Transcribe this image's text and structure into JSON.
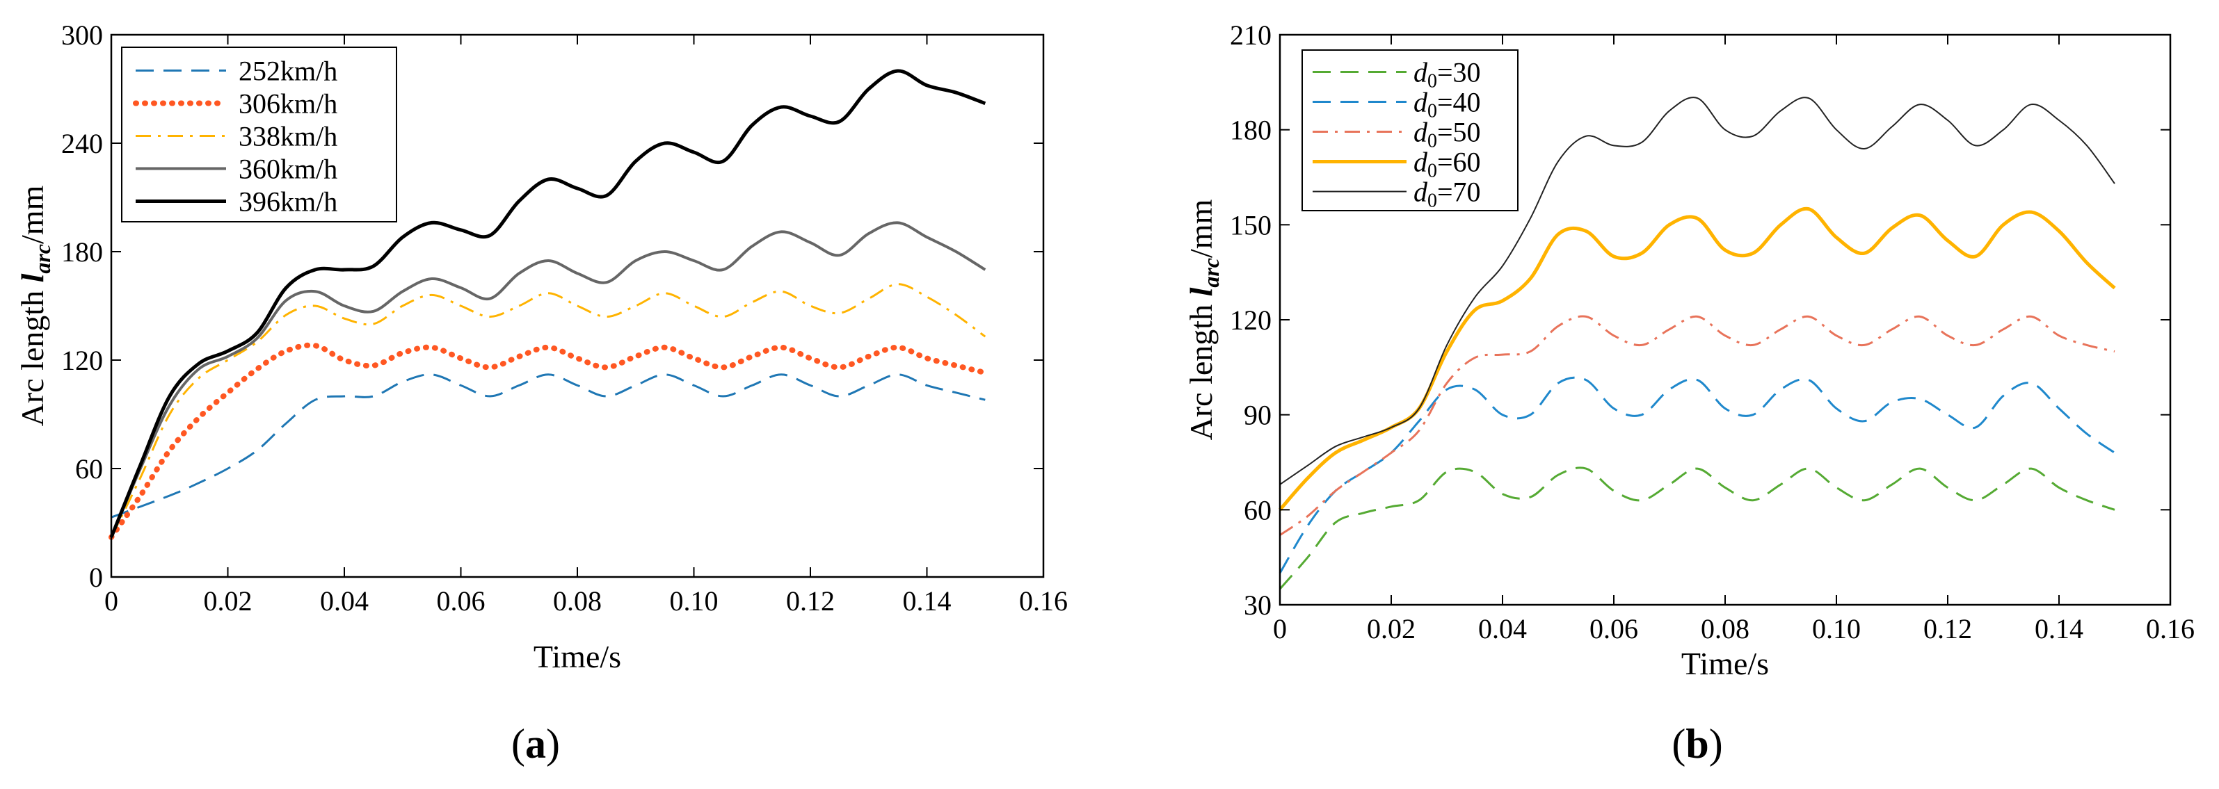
{
  "chart_data": [
    {
      "id": "a",
      "type": "line",
      "caption": "a",
      "xlabel": "Time/s",
      "ylabel_prefix": "Arc length ",
      "ylabel_var": "l",
      "ylabel_sub": "arc",
      "ylabel_suffix": "/mm",
      "xlim": [
        0,
        0.16
      ],
      "ylim": [
        0,
        300
      ],
      "xticks": [
        0,
        0.02,
        0.04,
        0.06,
        0.08,
        0.1,
        0.12,
        0.14,
        0.16
      ],
      "xtick_labels": [
        "0",
        "0.02",
        "0.04",
        "0.06",
        "0.08",
        "0.10",
        "0.12",
        "0.14",
        "0.16"
      ],
      "yticks": [
        0,
        60,
        120,
        180,
        240,
        300
      ],
      "ytick_labels": [
        "0",
        "60",
        "120",
        "180",
        "240",
        "300"
      ],
      "legend_position": "top-left",
      "series": [
        {
          "name": "252km/h",
          "label": "252km/h",
          "color": "#1f77b4",
          "dash": "dash",
          "width": 3,
          "x": [
            0,
            0.01,
            0.015,
            0.02,
            0.025,
            0.03,
            0.035,
            0.04,
            0.045,
            0.05,
            0.055,
            0.06,
            0.065,
            0.07,
            0.075,
            0.08,
            0.085,
            0.09,
            0.095,
            0.1,
            0.105,
            0.11,
            0.115,
            0.12,
            0.125,
            0.13,
            0.135,
            0.14,
            0.145,
            0.15
          ],
          "y": [
            33,
            45,
            52,
            60,
            70,
            85,
            98,
            100,
            100,
            108,
            112,
            106,
            100,
            106,
            112,
            106,
            100,
            106,
            112,
            106,
            100,
            106,
            112,
            106,
            100,
            106,
            112,
            106,
            102,
            98
          ]
        },
        {
          "name": "306km/h",
          "label": "306km/h",
          "color": "#ff5722",
          "dash": "dot",
          "width": 8,
          "x": [
            0,
            0.005,
            0.01,
            0.015,
            0.02,
            0.025,
            0.03,
            0.035,
            0.04,
            0.045,
            0.05,
            0.055,
            0.06,
            0.065,
            0.07,
            0.075,
            0.08,
            0.085,
            0.09,
            0.095,
            0.1,
            0.105,
            0.11,
            0.115,
            0.12,
            0.125,
            0.13,
            0.135,
            0.14,
            0.145,
            0.15
          ],
          "y": [
            22,
            45,
            70,
            88,
            102,
            115,
            125,
            128,
            120,
            117,
            124,
            127,
            121,
            116,
            122,
            127,
            121,
            116,
            122,
            127,
            121,
            116,
            122,
            127,
            121,
            116,
            122,
            127,
            121,
            117,
            113
          ]
        },
        {
          "name": "338km/h",
          "label": "338km/h",
          "color": "#ffb300",
          "dash": "dashdot",
          "width": 3,
          "x": [
            0,
            0.005,
            0.01,
            0.015,
            0.02,
            0.025,
            0.03,
            0.035,
            0.04,
            0.045,
            0.05,
            0.055,
            0.06,
            0.065,
            0.07,
            0.075,
            0.08,
            0.085,
            0.09,
            0.095,
            0.1,
            0.105,
            0.11,
            0.115,
            0.12,
            0.125,
            0.13,
            0.135,
            0.14,
            0.145,
            0.15
          ],
          "y": [
            22,
            55,
            90,
            110,
            120,
            130,
            145,
            150,
            143,
            140,
            150,
            156,
            150,
            144,
            150,
            157,
            150,
            144,
            150,
            157,
            150,
            144,
            152,
            158,
            150,
            146,
            154,
            162,
            155,
            145,
            133
          ]
        },
        {
          "name": "360km/h",
          "label": "360km/h",
          "color": "#666666",
          "dash": "solid",
          "width": 4,
          "x": [
            0,
            0.005,
            0.01,
            0.015,
            0.02,
            0.025,
            0.03,
            0.035,
            0.04,
            0.045,
            0.05,
            0.055,
            0.06,
            0.065,
            0.07,
            0.075,
            0.08,
            0.085,
            0.09,
            0.095,
            0.1,
            0.105,
            0.11,
            0.115,
            0.12,
            0.125,
            0.13,
            0.135,
            0.14,
            0.145,
            0.15
          ],
          "y": [
            22,
            60,
            95,
            115,
            122,
            132,
            153,
            158,
            150,
            147,
            158,
            165,
            160,
            154,
            168,
            175,
            168,
            163,
            175,
            180,
            175,
            170,
            183,
            191,
            185,
            178,
            190,
            196,
            188,
            180,
            170
          ]
        },
        {
          "name": "396km/h",
          "label": "396km/h",
          "color": "#000000",
          "dash": "solid",
          "width": 5,
          "x": [
            0,
            0.005,
            0.01,
            0.015,
            0.02,
            0.025,
            0.03,
            0.035,
            0.04,
            0.045,
            0.05,
            0.055,
            0.06,
            0.065,
            0.07,
            0.075,
            0.08,
            0.085,
            0.09,
            0.095,
            0.1,
            0.105,
            0.11,
            0.115,
            0.12,
            0.125,
            0.13,
            0.135,
            0.14,
            0.145,
            0.15
          ],
          "y": [
            22,
            62,
            100,
            118,
            125,
            135,
            160,
            170,
            170,
            172,
            188,
            196,
            192,
            189,
            208,
            220,
            215,
            211,
            230,
            240,
            235,
            230,
            250,
            260,
            255,
            252,
            270,
            280,
            272,
            268,
            262
          ]
        }
      ]
    },
    {
      "id": "b",
      "type": "line",
      "caption": "b",
      "xlabel": "Time/s",
      "ylabel_prefix": "Arc length ",
      "ylabel_var": "l",
      "ylabel_sub": "arc",
      "ylabel_suffix": "/mm",
      "xlim": [
        0,
        0.16
      ],
      "ylim": [
        30,
        210
      ],
      "xticks": [
        0,
        0.02,
        0.04,
        0.06,
        0.08,
        0.1,
        0.12,
        0.14,
        0.16
      ],
      "xtick_labels": [
        "0",
        "0.02",
        "0.04",
        "0.06",
        "0.08",
        "0.10",
        "0.12",
        "0.14",
        "0.16"
      ],
      "yticks": [
        30,
        60,
        90,
        120,
        150,
        180,
        210
      ],
      "ytick_labels": [
        "30",
        "60",
        "90",
        "120",
        "150",
        "180",
        "210"
      ],
      "legend_position": "top-left",
      "series": [
        {
          "name": "d0=30",
          "label_var": "d",
          "label_sub": "0",
          "label_rest": "=30",
          "color": "#55aa33",
          "dash": "dash",
          "width": 3,
          "x": [
            0,
            0.005,
            0.01,
            0.015,
            0.02,
            0.025,
            0.03,
            0.035,
            0.04,
            0.045,
            0.05,
            0.055,
            0.06,
            0.065,
            0.07,
            0.075,
            0.08,
            0.085,
            0.09,
            0.095,
            0.1,
            0.105,
            0.11,
            0.115,
            0.12,
            0.125,
            0.13,
            0.135,
            0.14,
            0.145,
            0.15
          ],
          "y": [
            35,
            45,
            56,
            59,
            61,
            63,
            72,
            72,
            65,
            64,
            71,
            73,
            66,
            63,
            68,
            73,
            67,
            63,
            68,
            73,
            67,
            63,
            68,
            73,
            67,
            63,
            68,
            73,
            67,
            63,
            60
          ]
        },
        {
          "name": "d0=40",
          "label_var": "d",
          "label_sub": "0",
          "label_rest": "=40",
          "color": "#1f88cc",
          "dash": "dash",
          "width": 3,
          "x": [
            0,
            0.005,
            0.01,
            0.015,
            0.02,
            0.025,
            0.03,
            0.035,
            0.04,
            0.045,
            0.05,
            0.055,
            0.06,
            0.065,
            0.07,
            0.075,
            0.08,
            0.085,
            0.09,
            0.095,
            0.1,
            0.105,
            0.11,
            0.115,
            0.12,
            0.125,
            0.13,
            0.135,
            0.14,
            0.145,
            0.15
          ],
          "y": [
            40,
            55,
            66,
            72,
            78,
            88,
            98,
            98,
            90,
            90,
            100,
            101,
            92,
            90,
            98,
            101,
            92,
            90,
            98,
            101,
            92,
            88,
            94,
            95,
            90,
            86,
            96,
            100,
            92,
            84,
            78
          ]
        },
        {
          "name": "d0=50",
          "label_var": "d",
          "label_sub": "0",
          "label_rest": "=50",
          "color": "#e8735a",
          "dash": "dashdot",
          "width": 3,
          "x": [
            0,
            0.005,
            0.01,
            0.015,
            0.02,
            0.025,
            0.03,
            0.035,
            0.04,
            0.045,
            0.05,
            0.055,
            0.06,
            0.065,
            0.07,
            0.075,
            0.08,
            0.085,
            0.09,
            0.095,
            0.1,
            0.105,
            0.11,
            0.115,
            0.12,
            0.125,
            0.13,
            0.135,
            0.14,
            0.145,
            0.15
          ],
          "y": [
            52,
            58,
            66,
            72,
            78,
            85,
            100,
            108,
            109,
            110,
            118,
            121,
            115,
            112,
            117,
            121,
            115,
            112,
            117,
            121,
            115,
            112,
            117,
            121,
            115,
            112,
            117,
            121,
            115,
            112,
            110
          ]
        },
        {
          "name": "d0=60",
          "label_var": "d",
          "label_sub": "0",
          "label_rest": "=60",
          "color": "#ffb300",
          "dash": "solid",
          "width": 5,
          "x": [
            0,
            0.005,
            0.01,
            0.015,
            0.02,
            0.025,
            0.03,
            0.035,
            0.04,
            0.045,
            0.05,
            0.055,
            0.06,
            0.065,
            0.07,
            0.075,
            0.08,
            0.085,
            0.09,
            0.095,
            0.1,
            0.105,
            0.11,
            0.115,
            0.12,
            0.125,
            0.13,
            0.135,
            0.14,
            0.145,
            0.15
          ],
          "y": [
            60,
            70,
            78,
            82,
            86,
            92,
            110,
            123,
            126,
            133,
            147,
            148,
            140,
            141,
            150,
            152,
            142,
            141,
            150,
            155,
            146,
            141,
            149,
            153,
            145,
            140,
            150,
            154,
            148,
            138,
            130
          ]
        },
        {
          "name": "d0=70",
          "label_var": "d",
          "label_sub": "0",
          "label_rest": "=70",
          "color": "#222222",
          "dash": "solid",
          "width": 2,
          "x": [
            0,
            0.005,
            0.01,
            0.015,
            0.02,
            0.025,
            0.03,
            0.035,
            0.04,
            0.045,
            0.05,
            0.055,
            0.06,
            0.065,
            0.07,
            0.075,
            0.08,
            0.085,
            0.09,
            0.095,
            0.1,
            0.105,
            0.11,
            0.115,
            0.12,
            0.125,
            0.13,
            0.135,
            0.14,
            0.145,
            0.15
          ],
          "y": [
            68,
            74,
            80,
            83,
            86,
            92,
            112,
            127,
            137,
            152,
            170,
            178,
            175,
            176,
            186,
            190,
            180,
            178,
            186,
            190,
            180,
            174,
            181,
            188,
            183,
            175,
            180,
            188,
            183,
            175,
            163
          ]
        }
      ]
    }
  ]
}
